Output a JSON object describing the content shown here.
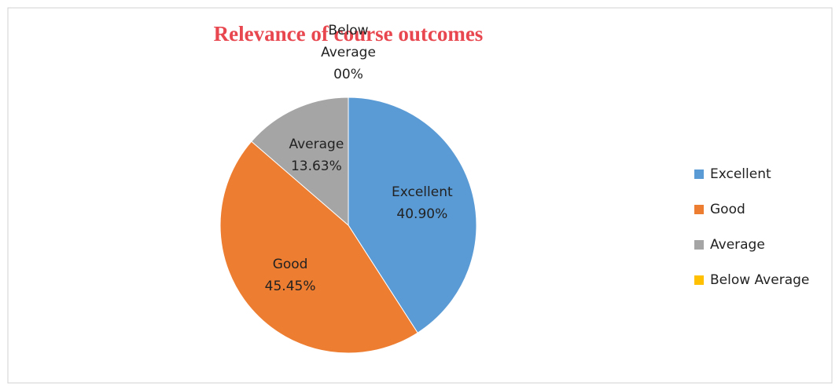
{
  "chart_data": {
    "type": "pie",
    "title": "Relevance of course outcomes",
    "categories": [
      "Excellent",
      "Good",
      "Average",
      "Below Average"
    ],
    "values": [
      40.9,
      45.45,
      13.63,
      0
    ],
    "value_labels": [
      "40.90%",
      "45.45%",
      "13.63%",
      "00%"
    ],
    "colors": [
      "#5b9bd5",
      "#ed7d31",
      "#a5a5a5",
      "#ffc000"
    ],
    "legend": "right"
  }
}
